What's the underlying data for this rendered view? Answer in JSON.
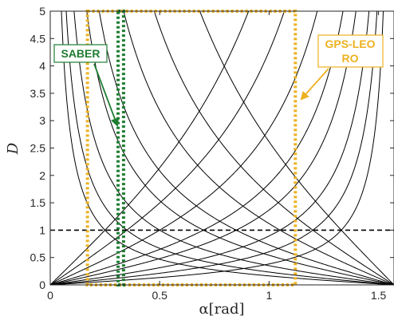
{
  "chart_data": {
    "type": "line",
    "xlabel": "α[rad]",
    "ylabel": "D",
    "xlim": [
      0,
      1.5708
    ],
    "ylim": [
      0,
      5
    ],
    "x_ticks": [
      "0",
      "0.5",
      "1",
      "1.5"
    ],
    "y_ticks": [
      "0",
      "0.5",
      "1",
      "1.5",
      "2",
      "2.5",
      "3",
      "3.5",
      "4",
      "4.5",
      "5"
    ],
    "reference_line": {
      "y": 1,
      "style": "dashed",
      "color": "#000000"
    },
    "curve_family": {
      "description_source": "solid black curves D(α) for several constant values c",
      "formula": "D = tan(α) / tan(c)",
      "c_values": [
        0.25,
        0.35,
        0.5,
        0.7,
        0.85,
        1.05,
        1.2,
        1.33
      ],
      "color": "#000000"
    },
    "regions": [
      {
        "label": "GPS-LEO RO",
        "x_range": [
          0.17,
          1.12
        ],
        "y_range": [
          0,
          5
        ],
        "color": "#EDB120"
      },
      {
        "label": "SABER",
        "x_range": [
          0.31,
          0.335
        ],
        "y_range": [
          0,
          5
        ],
        "color": "#1E7D32"
      }
    ],
    "annotations": [
      {
        "text": "SABER",
        "color": "#1E7D32",
        "arrow_to": [
          0.3,
          2.9
        ]
      },
      {
        "text_lines": [
          "GPS-LEO",
          "RO"
        ],
        "color": "#EDB120",
        "arrow_to": [
          1.14,
          3.45
        ]
      }
    ]
  }
}
